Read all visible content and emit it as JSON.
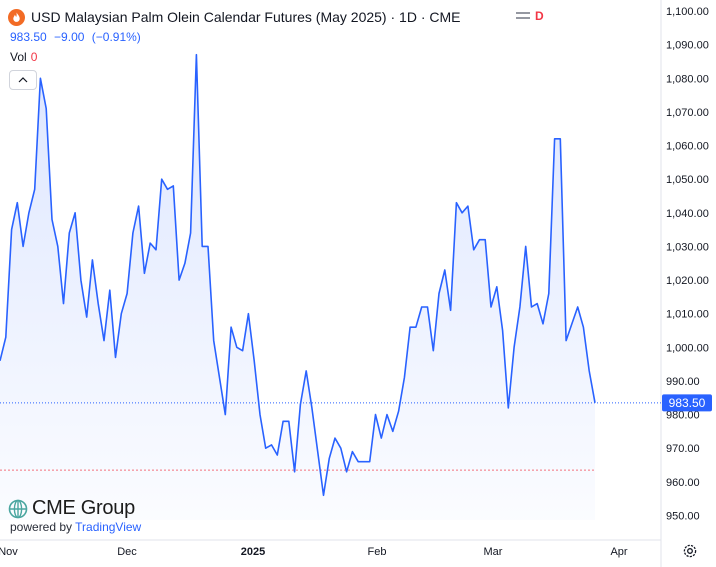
{
  "header": {
    "title": "USD Malaysian Palm Olein Calendar Futures (May 2025) · 1D · CME",
    "controls_icon": "equals-icon",
    "d_badge": "D",
    "last_price": "983.50",
    "change": "−9.00",
    "change_pct": "(−0.91%)",
    "volume_label": "Vol",
    "volume_value": "0"
  },
  "branding": {
    "name": "CME Group",
    "powered_by": "powered by",
    "tradingview": "TradingView"
  },
  "colors": {
    "line": "#2962ff",
    "accent_orange": "#f26b25",
    "price_tag": "#2962ff",
    "down_red": "#f23645"
  },
  "chart_data": {
    "type": "area",
    "title": "",
    "xlabel": "",
    "ylabel": "",
    "ylim": [
      945,
      1100
    ],
    "y_ticks": [
      "950.00",
      "960.00",
      "970.00",
      "980.00",
      "990.00",
      "1,000.00",
      "1,010.00",
      "1,020.00",
      "1,030.00",
      "1,040.00",
      "1,050.00",
      "1,060.00",
      "1,070.00",
      "1,080.00",
      "1,090.00",
      "1,100.00"
    ],
    "x_ticks": [
      "Nov",
      "Dec",
      "2025",
      "Feb",
      "Mar",
      "Apr"
    ],
    "last_price_label": "983.50",
    "reference_line": 963.5,
    "grid": false,
    "series": [
      {
        "values": [
          996,
          1003,
          1035,
          1043,
          1030,
          1040,
          1047,
          1080,
          1071,
          1038,
          1030,
          1013,
          1034,
          1040,
          1020,
          1009,
          1026,
          1013,
          1002,
          1017,
          997,
          1010,
          1016,
          1034,
          1042,
          1022,
          1031,
          1029,
          1050,
          1047,
          1048,
          1020,
          1025,
          1034,
          1087,
          1030,
          1030,
          1002,
          991,
          980,
          1006,
          1000,
          999,
          1010,
          996,
          980,
          970,
          971,
          968,
          978,
          978,
          963,
          983,
          993,
          982,
          969,
          956,
          967,
          973,
          970,
          963,
          969,
          966,
          966,
          966,
          980,
          973,
          980,
          975,
          981,
          991,
          1006,
          1006,
          1012,
          1012,
          999,
          1016,
          1023,
          1011,
          1043,
          1040,
          1042,
          1029,
          1032,
          1032,
          1012,
          1018,
          1005,
          982,
          1000,
          1012,
          1030,
          1012,
          1013,
          1007,
          1016,
          1062,
          1062,
          1002,
          1007,
          1012,
          1006,
          993,
          983.5
        ]
      }
    ]
  }
}
